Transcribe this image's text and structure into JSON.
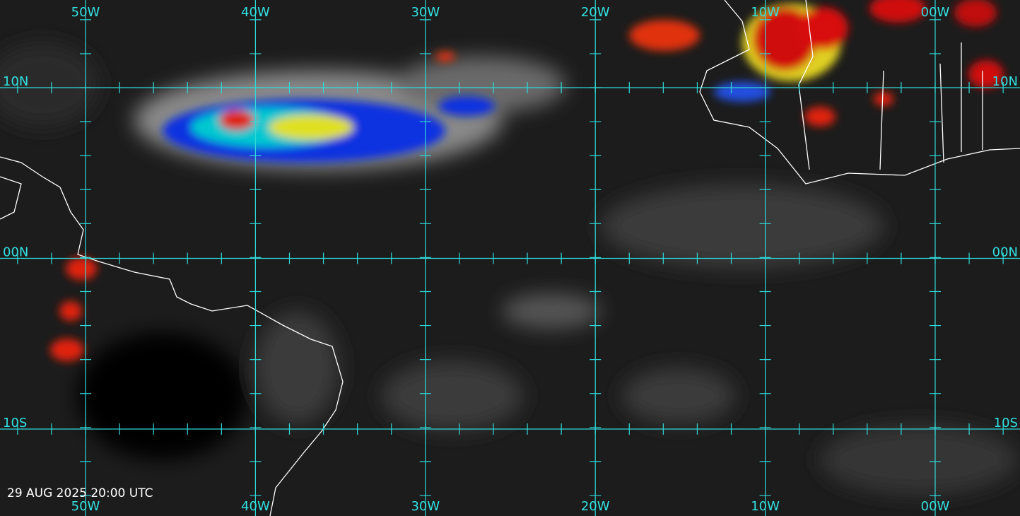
{
  "longitude_labels": [
    "50W",
    "40W",
    "30W",
    "20W",
    "10W",
    "00W"
  ],
  "latitude_labels": [
    "10N",
    "00N",
    "10S"
  ],
  "timestamp": "29 AUG 2025 20:00 UTC"
}
